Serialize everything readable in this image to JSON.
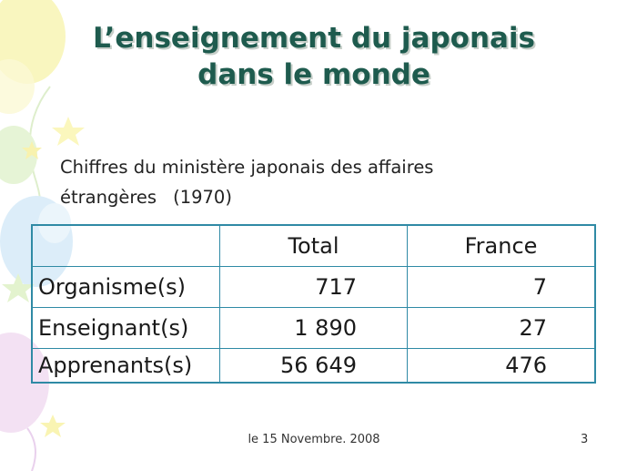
{
  "slide": {
    "title_line1": "L’enseignement du japonais",
    "title_line2": "dans le monde",
    "subtitle_line1": "Chiffres du ministère japonais des affaires",
    "subtitle_line2_text": "étrangères",
    "subtitle_year": "(1970)"
  },
  "table": {
    "headers": [
      "",
      "Total",
      "France"
    ],
    "rows": [
      {
        "label": "Organisme(s)",
        "total": "717",
        "france": "7"
      },
      {
        "label": "Enseignant(s)",
        "total": "1 890",
        "france": "27"
      },
      {
        "label": "Apprenants(s)",
        "total": "56 649",
        "france": "476"
      }
    ]
  },
  "footer": {
    "date": "le 15 Novembre. 2008",
    "page_number": "3"
  },
  "colors": {
    "title": "#1e5b4e",
    "table_border": "#2f8aa5",
    "balloon_yellow": "#f7f3a8",
    "balloon_blue": "#cfe7f5",
    "balloon_pink": "#efd3ee",
    "balloon_green": "#d9f0c2"
  }
}
